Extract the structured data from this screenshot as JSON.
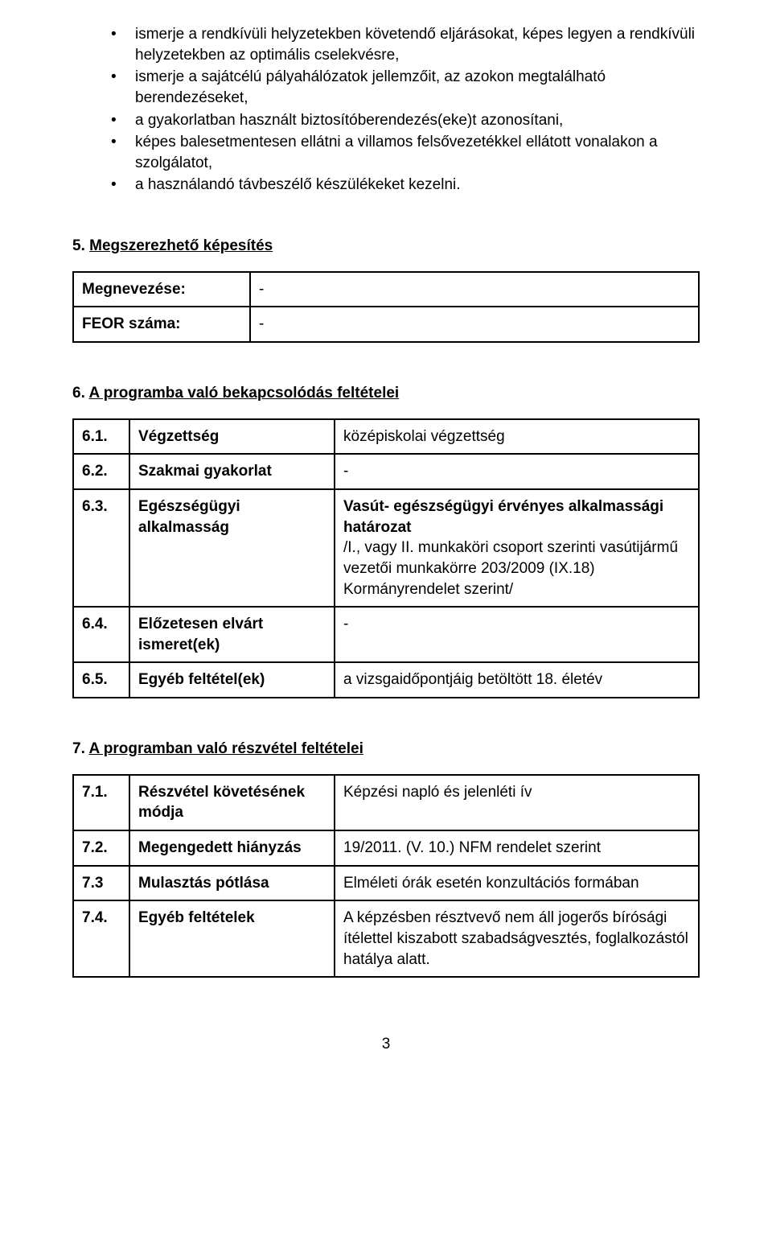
{
  "bullets": {
    "b1": "ismerje a rendkívüli helyzetekben követendő eljárásokat, képes legyen a rendkívüli helyzetekben az optimális cselekvésre,",
    "b2": "ismerje a sajátcélú pályahálózatok jellemzőit, az azokon megtalálható berendezéseket,",
    "b3": "a gyakorlatban használt biztosítóberendezés(eke)t azonosítani,",
    "b4": "képes balesetmentesen ellátni a villamos felsővezetékkel ellátott vonalakon a szolgálatot,",
    "b5": "a használandó távbeszélő készülékeket kezelni."
  },
  "s5": {
    "num": "5.",
    "title": "Megszerezhető képesítés",
    "r1_label": "Megnevezése:",
    "r1_val": "-",
    "r2_label": "FEOR száma:",
    "r2_val": "-"
  },
  "s6": {
    "num": "6.",
    "title": "A programba való bekapcsolódás feltételei",
    "rows": {
      "r1": {
        "n": "6.1.",
        "k": "Végzettség",
        "v": "középiskolai végzettség"
      },
      "r2": {
        "n": "6.2.",
        "k": "Szakmai gyakorlat",
        "v": "-"
      },
      "r3": {
        "n": "6.3.",
        "k": "Egészségügyi alkalmasság",
        "v_bold": "Vasút- egészségügyi érvényes alkalmassági határozat",
        "v_rest": " /I., vagy II. munkaköri csoport szerinti vasútijármű vezetői munkakörre 203/2009 (IX.18) Kormányrendelet szerint/"
      },
      "r4": {
        "n": "6.4.",
        "k": "Előzetesen elvárt ismeret(ek)",
        "v": "-"
      },
      "r5": {
        "n": "6.5.",
        "k": "Egyéb feltétel(ek)",
        "v": "a vizsgaidőpontjáig betöltött 18. életév"
      }
    }
  },
  "s7": {
    "num": "7.",
    "title": "A programban való részvétel feltételei",
    "rows": {
      "r1": {
        "n": "7.1.",
        "k": "Részvétel követésének módja",
        "v": "Képzési napló és jelenléti ív"
      },
      "r2": {
        "n": "7.2.",
        "k": "Megengedett hiányzás",
        "v": "19/2011. (V. 10.) NFM rendelet szerint"
      },
      "r3": {
        "n": "7.3",
        "k": "Mulasztás pótlása",
        "v": "Elméleti órák esetén konzultációs formában"
      },
      "r4": {
        "n": "7.4.",
        "k": "Egyéb feltételek",
        "v": "A képzésben résztvevő nem áll jogerős bírósági ítélettel kiszabott szabadságvesztés, foglalkozástól hatálya alatt."
      }
    }
  },
  "page_number": "3"
}
